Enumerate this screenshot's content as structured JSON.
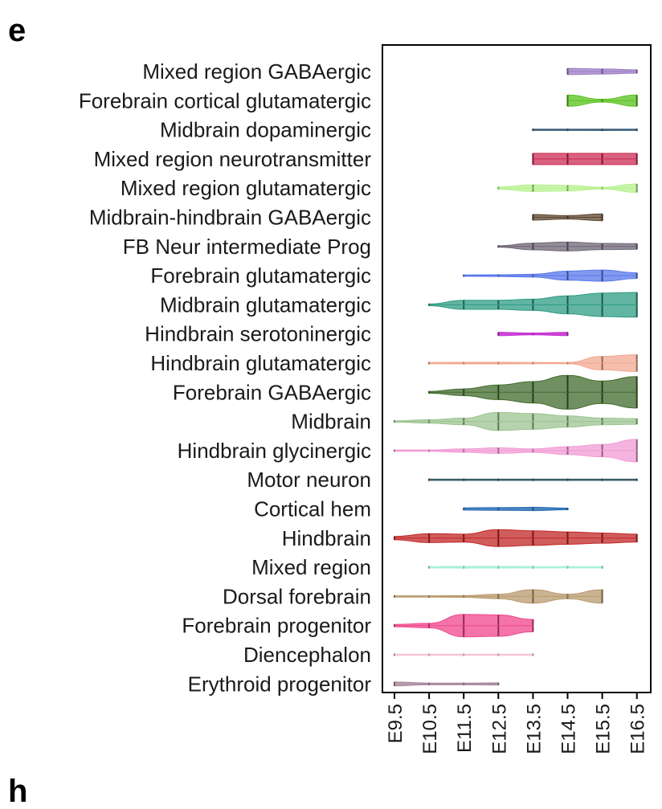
{
  "panel_label": "e",
  "next_panel_label": "h",
  "chart_data": {
    "type": "violin",
    "title": "",
    "xlabel": "",
    "ylabel": "",
    "x_categories": [
      "E9.5",
      "E10.5",
      "E11.5",
      "E12.5",
      "E13.5",
      "E14.5",
      "E15.5",
      "E16.5"
    ],
    "series": [
      {
        "name": "Mixed region GABAergic",
        "color": "#9b7bc4",
        "widths": [
          0,
          0,
          0,
          0,
          0,
          0.55,
          0.45,
          0.3
        ]
      },
      {
        "name": "Forebrain cortical glutamatergic",
        "color": "#58c21c",
        "widths": [
          0,
          0,
          0,
          0,
          0,
          1.0,
          0.25,
          1.0
        ]
      },
      {
        "name": "Midbrain dopaminergic",
        "color": "#3c5f7d",
        "widths": [
          0,
          0,
          0,
          0,
          0.05,
          0.1,
          0.12,
          0.05
        ]
      },
      {
        "name": "Mixed region neurotransmitter",
        "color": "#cc2c55",
        "widths": [
          0,
          0,
          0,
          0,
          1.0,
          1.0,
          1.0,
          1.0
        ]
      },
      {
        "name": "Mixed region glutamatergic",
        "color": "#b6f28e",
        "widths": [
          0,
          0,
          0,
          0.2,
          0.6,
          0.5,
          0.15,
          0.75
        ]
      },
      {
        "name": "Midbrain-hindbrain GABAergic",
        "color": "#5c4630",
        "widths": [
          0,
          0,
          0,
          0,
          0.5,
          0.3,
          0.6,
          0
        ]
      },
      {
        "name": "FB Neur intermediate Prog",
        "color": "#6e6577",
        "widths": [
          0,
          0,
          0,
          0.1,
          0.6,
          0.8,
          0.55,
          0.5
        ]
      },
      {
        "name": "Forebrain glutamatergic",
        "color": "#5877ea",
        "widths": [
          0,
          0,
          0.05,
          0.15,
          0.25,
          0.8,
          1.0,
          0.5
        ]
      },
      {
        "name": "Midbrain glutamatergic",
        "color": "#2e9b84",
        "widths": [
          0,
          0.15,
          0.8,
          0.8,
          1.0,
          1.6,
          2.1,
          2.2
        ]
      },
      {
        "name": "Hindbrain serotoninergic",
        "color": "#c42ad0",
        "widths": [
          0,
          0,
          0,
          0.3,
          0.15,
          0.3,
          0,
          0
        ]
      },
      {
        "name": "Hindbrain glutamatergic",
        "color": "#f2a890",
        "widths": [
          0,
          0.1,
          0.15,
          0.15,
          0.1,
          0.1,
          1.2,
          1.5
        ]
      },
      {
        "name": "Forebrain GABAergic",
        "color": "#416b2c",
        "widths": [
          0,
          0.15,
          0.6,
          1.3,
          1.9,
          3.0,
          2.0,
          2.8
        ]
      },
      {
        "name": "Midbrain",
        "color": "#9cc490",
        "widths": [
          0.1,
          0.3,
          0.6,
          1.6,
          1.4,
          1.0,
          0.6,
          0.5
        ]
      },
      {
        "name": "Hindbrain glycinergic",
        "color": "#f29bd4",
        "widths": [
          0.05,
          0.05,
          0.3,
          0.5,
          0.3,
          0.7,
          1.1,
          2.0
        ]
      },
      {
        "name": "Motor neuron",
        "color": "#385c66",
        "widths": [
          0,
          0.05,
          0.1,
          0.1,
          0.1,
          0.1,
          0.1,
          0.1
        ]
      },
      {
        "name": "Cortical hem",
        "color": "#2c6fb4",
        "widths": [
          0,
          0,
          0.2,
          0.25,
          0.3,
          0.15,
          0,
          0
        ]
      },
      {
        "name": "Hindbrain",
        "color": "#c12626",
        "widths": [
          0.3,
          0.8,
          0.7,
          1.5,
          1.3,
          1.1,
          0.9,
          0.7
        ]
      },
      {
        "name": "Mixed region",
        "color": "#a8f0d6",
        "widths": [
          0,
          0.1,
          0.15,
          0.15,
          0.12,
          0.1,
          0.1,
          0
        ]
      },
      {
        "name": "Dorsal forebrain",
        "color": "#b89a6e",
        "widths": [
          0.1,
          0.1,
          0.15,
          0.4,
          1.2,
          0.4,
          1.2,
          0
        ]
      },
      {
        "name": "Forebrain progenitor",
        "color": "#f0468c",
        "widths": [
          0.2,
          0.4,
          2.0,
          1.9,
          1.1,
          0,
          0,
          0
        ]
      },
      {
        "name": "Diencephalon",
        "color": "#f7c4d8",
        "widths": [
          0.1,
          0.1,
          0.1,
          0.1,
          0.1,
          0,
          0,
          0
        ]
      },
      {
        "name": "Erythroid progenitor",
        "color": "#a7889a",
        "widths": [
          0.35,
          0.15,
          0.15,
          0.2,
          0,
          0,
          0,
          0
        ]
      }
    ]
  }
}
